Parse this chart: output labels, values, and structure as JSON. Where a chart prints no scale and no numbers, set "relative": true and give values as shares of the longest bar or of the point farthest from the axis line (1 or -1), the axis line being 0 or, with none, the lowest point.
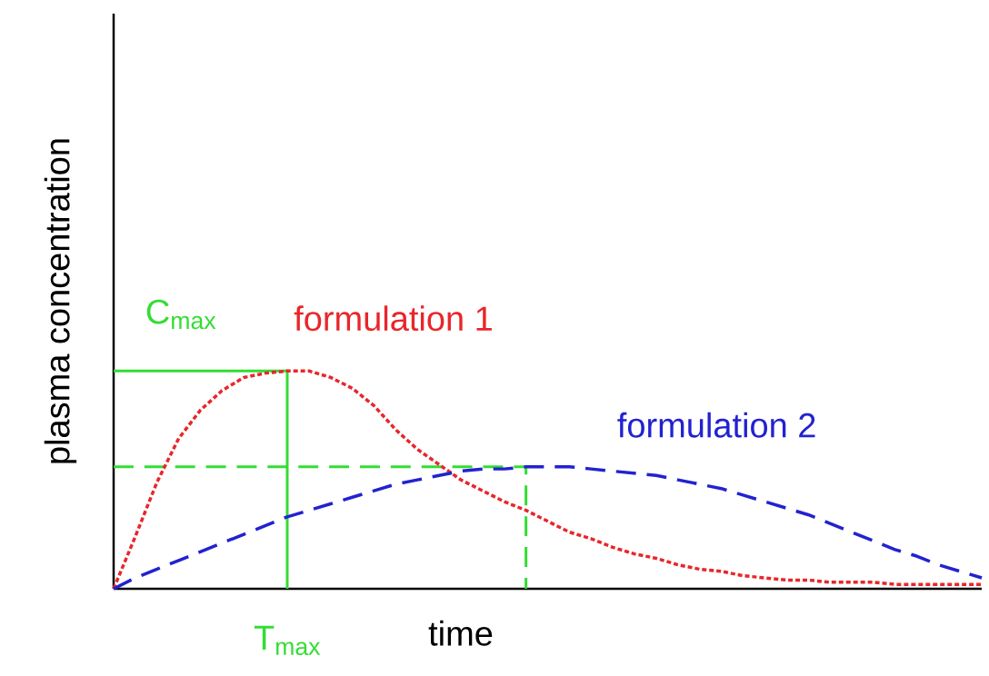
{
  "chart_data": {
    "type": "line",
    "relative": true,
    "xlabel": "time",
    "ylabel": "plasma concentration",
    "categories": [
      null,
      null,
      null,
      null,
      null,
      null,
      null,
      null,
      null,
      null,
      null,
      null,
      null,
      null,
      null,
      null,
      null,
      null,
      null,
      null,
      null,
      null,
      null,
      null,
      null,
      null,
      null,
      null,
      null,
      null,
      null,
      null,
      null,
      null,
      null,
      null,
      null,
      null,
      null,
      null,
      null
    ],
    "series": [
      {
        "name": "formulation 1",
        "color": "#e8262a",
        "line_style": "dotted",
        "values": [
          0,
          0.24,
          0.49,
          0.69,
          0.82,
          0.91,
          0.97,
          0.99,
          1.0,
          1.0,
          0.97,
          0.92,
          0.84,
          0.73,
          0.64,
          0.57,
          0.5,
          0.45,
          0.4,
          0.36,
          0.31,
          0.26,
          0.23,
          0.19,
          0.16,
          0.14,
          0.11,
          0.09,
          0.08,
          0.06,
          0.05,
          0.04,
          0.04,
          0.03,
          0.03,
          0.03,
          0.02,
          0.02,
          0.02,
          0.02,
          0.02
        ]
      },
      {
        "name": "formulation 2",
        "color": "#2222d0",
        "line_style": "dashed",
        "values": [
          0,
          0.05,
          0.09,
          0.13,
          0.17,
          0.21,
          0.25,
          0.29,
          0.33,
          0.36,
          0.39,
          0.42,
          0.45,
          0.48,
          0.5,
          0.52,
          0.54,
          0.55,
          0.55,
          0.56,
          0.56,
          0.56,
          0.55,
          0.54,
          0.53,
          0.52,
          0.5,
          0.48,
          0.46,
          0.43,
          0.4,
          0.37,
          0.34,
          0.3,
          0.26,
          0.22,
          0.18,
          0.15,
          0.11,
          0.08,
          0.05
        ]
      }
    ],
    "ref_lines": [
      {
        "axis": "y",
        "value": 1.0,
        "label": "C$_{max}$",
        "color": "#33dd33",
        "line_style": "solid"
      },
      {
        "axis": "y",
        "value": 0.56,
        "color": "#33dd33",
        "line_style": "dashed"
      }
    ],
    "annotations": [
      "T$_{max}$"
    ]
  }
}
